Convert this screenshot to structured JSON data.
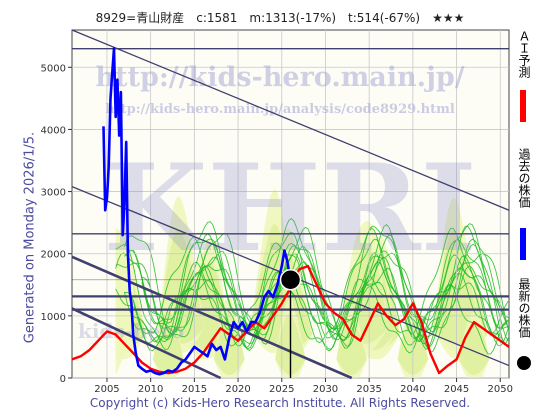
{
  "header": {
    "title": "8929=青山財産　c:1581　m:1313(-17%)　t:514(-67%)　★★★"
  },
  "side_text": "Generated on Monday 2026/1/5.",
  "footer": "Copyright (c) Kids-Hero Research Institute. All Rights Reserved.",
  "watermarks": {
    "url": "http://kids-hero.main.jp/",
    "url2": "http://kids-hero.main.jp/analysis/code8929.html",
    "big": "KHRI",
    "small": "kids-hero"
  },
  "legend": [
    {
      "label": "ＡＩ予測",
      "color": "#ff0000"
    },
    {
      "label": "過去の株価",
      "color": "#0000ff"
    },
    {
      "label": "最新の株価",
      "color": "#000000"
    }
  ],
  "colors": {
    "past": "#0000ff",
    "ai": "#ff0000",
    "band_fill": "#eef6ba",
    "band_fill_dark": "#d9ee96",
    "green": "#22bb22",
    "channel": "#404070",
    "grid": "#c8c8c8"
  },
  "chart_data": {
    "type": "line",
    "xlim": [
      2001,
      2051
    ],
    "ylim": [
      0,
      5600
    ],
    "x_ticks": [
      2005,
      2010,
      2015,
      2020,
      2025,
      2030,
      2035,
      2040,
      2045,
      2050
    ],
    "y_ticks": [
      0,
      1000,
      2000,
      3000,
      4000,
      5000
    ],
    "current": {
      "x": 2026.0,
      "y": 1581
    },
    "horizontal_lines": [
      5300,
      2320,
      1313,
      1100
    ],
    "channels": [
      {
        "x": [
          2001,
          2051
        ],
        "y": [
          5600,
          2700
        ]
      },
      {
        "x": [
          2001,
          2051
        ],
        "y": [
          3080,
          200
        ]
      },
      {
        "x": [
          2001,
          2033
        ],
        "y": [
          1950,
          0
        ]
      },
      {
        "x": [
          2001,
          2018
        ],
        "y": [
          1120,
          0
        ]
      }
    ],
    "series": [
      {
        "name": "過去の株価",
        "x": [
          2004.6,
          2004.8,
          2005.0,
          2005.2,
          2005.4,
          2005.6,
          2005.8,
          2006.0,
          2006.2,
          2006.4,
          2006.6,
          2006.8,
          2007.0,
          2007.2,
          2007.4,
          2007.6,
          2007.8,
          2008.0,
          2008.3,
          2008.6,
          2009.0,
          2009.5,
          2010.0,
          2010.5,
          2011.0,
          2011.5,
          2012.0,
          2012.5,
          2013.0,
          2013.5,
          2014.0,
          2014.5,
          2015.0,
          2015.5,
          2016.0,
          2016.5,
          2017.0,
          2017.5,
          2018.0,
          2018.5,
          2019.0,
          2019.5,
          2020.0,
          2020.5,
          2021.0,
          2021.5,
          2022.0,
          2022.5,
          2023.0,
          2023.5,
          2024.0,
          2024.5,
          2025.0,
          2025.3,
          2025.6,
          2026.0
        ],
        "y": [
          4050,
          2700,
          2900,
          3400,
          4500,
          4900,
          5300,
          4200,
          4800,
          3900,
          4600,
          2300,
          2800,
          3800,
          2000,
          1400,
          1200,
          700,
          400,
          200,
          150,
          100,
          120,
          80,
          60,
          80,
          120,
          100,
          150,
          250,
          300,
          400,
          500,
          450,
          400,
          350,
          550,
          450,
          500,
          300,
          650,
          900,
          800,
          900,
          750,
          900,
          900,
          1050,
          1300,
          1400,
          1300,
          1500,
          1800,
          2050,
          1900,
          1581
        ]
      },
      {
        "name": "ＡＩ予測",
        "x": [
          2001.0,
          2002.0,
          2003.0,
          2004.0,
          2005.0,
          2006.0,
          2007.0,
          2008.0,
          2009.0,
          2010.0,
          2011.0,
          2012.0,
          2013.0,
          2014.0,
          2015.0,
          2016.0,
          2017.0,
          2018.0,
          2019.0,
          2020.0,
          2021.0,
          2022.0,
          2023.0,
          2024.0,
          2025.0,
          2026.0,
          2027.0,
          2028.0,
          2029.0,
          2030.0,
          2031.0,
          2032.0,
          2033.0,
          2034.0,
          2035.0,
          2036.0,
          2037.0,
          2038.0,
          2039.0,
          2040.0,
          2041.0,
          2042.0,
          2043.0,
          2044.0,
          2045.0,
          2046.0,
          2047.0,
          2048.0,
          2049.0,
          2050.0,
          2051.0
        ],
        "y": [
          300,
          350,
          450,
          600,
          750,
          700,
          550,
          400,
          250,
          150,
          100,
          80,
          100,
          150,
          250,
          400,
          600,
          800,
          700,
          600,
          750,
          900,
          800,
          1000,
          1200,
          1450,
          1750,
          1800,
          1500,
          1200,
          1050,
          950,
          700,
          600,
          900,
          1200,
          1000,
          850,
          950,
          1200,
          900,
          400,
          80,
          200,
          300,
          650,
          900,
          800,
          700,
          600,
          500
        ]
      }
    ]
  }
}
